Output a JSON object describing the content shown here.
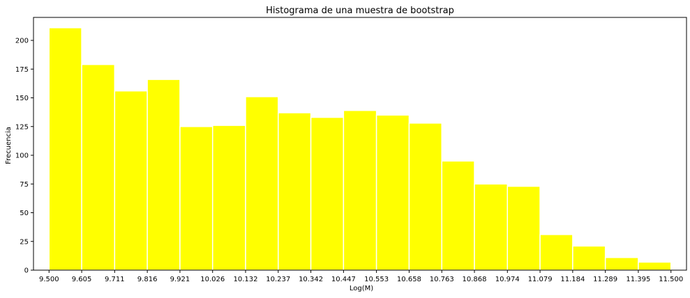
{
  "chart_data": {
    "type": "bar",
    "title": "Histograma de una muestra de bootstrap",
    "xlabel": "Log(M)",
    "ylabel": "Frecuencia",
    "bin_edges": [
      9.5,
      9.605,
      9.711,
      9.816,
      9.921,
      10.026,
      10.132,
      10.237,
      10.342,
      10.447,
      10.553,
      10.658,
      10.763,
      10.868,
      10.974,
      11.079,
      11.184,
      11.289,
      11.395,
      11.5
    ],
    "x_tick_labels": [
      "9.500",
      "9.605",
      "9.711",
      "9.816",
      "9.921",
      "10.026",
      "10.132",
      "10.237",
      "10.342",
      "10.447",
      "10.553",
      "10.658",
      "10.763",
      "10.868",
      "10.974",
      "11.079",
      "11.184",
      "11.289",
      "11.395",
      "11.500"
    ],
    "values": [
      211,
      179,
      156,
      166,
      125,
      126,
      151,
      137,
      133,
      139,
      135,
      128,
      95,
      75,
      73,
      31,
      21,
      11,
      7
    ],
    "y_ticks": [
      0,
      25,
      50,
      75,
      100,
      125,
      150,
      175,
      200
    ],
    "ylim": [
      0,
      220
    ],
    "xlim": [
      9.45,
      11.55
    ],
    "grid": false,
    "bar_color": "#ffff00",
    "bar_edge_color": "#ffffff"
  }
}
